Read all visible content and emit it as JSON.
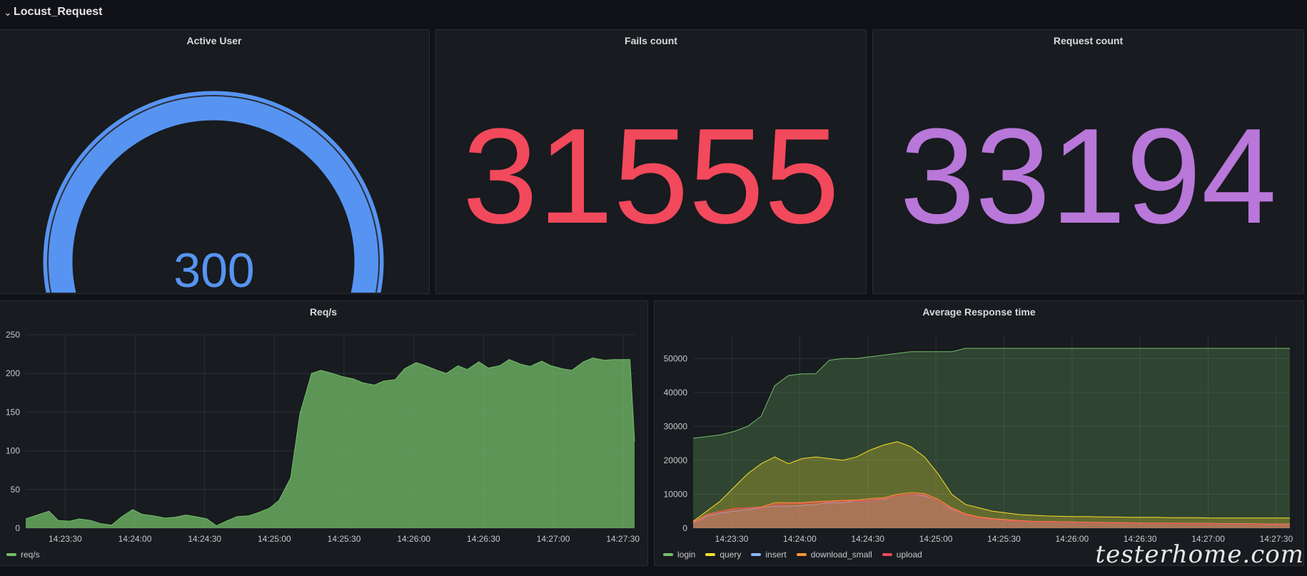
{
  "row": {
    "title": "Locust_Request",
    "chevron_icon": "chevron-down-icon"
  },
  "panels": {
    "active_user": {
      "title": "Active User",
      "value": "300",
      "numeric_value": 300,
      "color": "#5794f2"
    },
    "fails_count": {
      "title": "Fails count",
      "value": "31555",
      "color": "#f2495c"
    },
    "request_count": {
      "title": "Request count",
      "value": "33194",
      "color": "#b877d9"
    },
    "req_s": {
      "title": "Req/s"
    },
    "avg_response": {
      "title": "Average Response time"
    }
  },
  "watermark": "testerhome.com",
  "chart_data": [
    {
      "type": "area",
      "title": "Req/s",
      "ylim": [
        0,
        250
      ],
      "y_ticks": [
        "250",
        "200",
        "150",
        "100",
        "50",
        "0"
      ],
      "x_ticks": [
        "14:23:30",
        "14:24:00",
        "14:24:30",
        "14:25:00",
        "14:25:30",
        "14:26:00",
        "14:26:30",
        "14:27:00",
        "14:27:30"
      ],
      "grid": true,
      "legend_position": "bottom-left",
      "series": [
        {
          "name": "req/s",
          "color": "#73bf69",
          "x": [
            "14:23:13",
            "14:23:18",
            "14:23:23",
            "14:23:27",
            "14:23:32",
            "14:23:36",
            "14:23:41",
            "14:23:45",
            "14:23:50",
            "14:23:54",
            "14:23:59",
            "14:24:03",
            "14:24:08",
            "14:24:13",
            "14:24:17",
            "14:24:22",
            "14:24:26",
            "14:24:31",
            "14:24:35",
            "14:24:40",
            "14:24:44",
            "14:24:49",
            "14:24:53",
            "14:24:58",
            "14:25:02",
            "14:25:07",
            "14:25:11",
            "14:25:16",
            "14:25:20",
            "14:25:25",
            "14:25:29",
            "14:25:34",
            "14:25:38",
            "14:25:43",
            "14:25:47",
            "14:25:52",
            "14:25:56",
            "14:26:01",
            "14:26:05",
            "14:26:10",
            "14:26:14",
            "14:26:19",
            "14:26:23",
            "14:26:28",
            "14:26:32",
            "14:26:37",
            "14:26:41",
            "14:26:46",
            "14:26:50",
            "14:26:55",
            "14:26:59",
            "14:27:04",
            "14:27:08",
            "14:27:13",
            "14:27:17",
            "14:27:22",
            "14:27:26",
            "14:27:31",
            "14:27:33",
            "14:27:35"
          ],
          "values": [
            12,
            17,
            22,
            10,
            9,
            12,
            10,
            6,
            4,
            14,
            24,
            18,
            16,
            13,
            14,
            17,
            15,
            12,
            3,
            10,
            15,
            16,
            20,
            26,
            36,
            65,
            148,
            200,
            204,
            200,
            196,
            193,
            188,
            185,
            190,
            192,
            206,
            214,
            210,
            204,
            200,
            210,
            205,
            215,
            207,
            210,
            218,
            212,
            209,
            216,
            210,
            206,
            204,
            215,
            220,
            217,
            218,
            218,
            218,
            112
          ]
        }
      ]
    },
    {
      "type": "area",
      "title": "Average Response time",
      "ylim": [
        0,
        57000
      ],
      "y_ticks": [
        "50000",
        "40000",
        "30000",
        "20000",
        "10000",
        "0"
      ],
      "x_ticks": [
        "14:23:30",
        "14:24:00",
        "14:24:30",
        "14:25:00",
        "14:25:30",
        "14:26:00",
        "14:26:30",
        "14:27:00",
        "14:27:30"
      ],
      "grid": true,
      "legend_position": "bottom-left",
      "x": [
        "14:23:13",
        "14:23:19",
        "14:23:25",
        "14:23:31",
        "14:23:37",
        "14:23:43",
        "14:23:49",
        "14:23:55",
        "14:24:01",
        "14:24:07",
        "14:24:13",
        "14:24:19",
        "14:24:25",
        "14:24:31",
        "14:24:37",
        "14:24:43",
        "14:24:49",
        "14:24:55",
        "14:25:01",
        "14:25:07",
        "14:25:13",
        "14:25:19",
        "14:25:25",
        "14:25:31",
        "14:25:37",
        "14:25:43",
        "14:25:49",
        "14:25:55",
        "14:26:01",
        "14:26:07",
        "14:26:13",
        "14:26:19",
        "14:26:25",
        "14:26:31",
        "14:26:37",
        "14:26:43",
        "14:26:49",
        "14:26:55",
        "14:27:01",
        "14:27:07",
        "14:27:13",
        "14:27:19",
        "14:27:25",
        "14:27:31",
        "14:27:36"
      ],
      "series": [
        {
          "name": "login",
          "color": "#73bf69",
          "values": [
            26500,
            27000,
            27500,
            28500,
            30000,
            33000,
            42000,
            45000,
            45500,
            45500,
            49500,
            50000,
            50000,
            50500,
            51000,
            51500,
            52000,
            52000,
            52000,
            52000,
            53000,
            53000,
            53000,
            53000,
            53000,
            53000,
            53000,
            53000,
            53000,
            53000,
            53000,
            53000,
            53000,
            53000,
            53000,
            53000,
            53000,
            53000,
            53000,
            53000,
            53000,
            53000,
            53000,
            53000,
            53000
          ]
        },
        {
          "name": "query",
          "color": "#fade2a",
          "values": [
            2000,
            5000,
            8000,
            12000,
            16000,
            19000,
            21000,
            19000,
            20500,
            21000,
            20500,
            20000,
            21000,
            23000,
            24500,
            25500,
            24000,
            21000,
            16000,
            10000,
            7000,
            6000,
            5000,
            4500,
            4000,
            3800,
            3600,
            3500,
            3400,
            3400,
            3300,
            3300,
            3200,
            3200,
            3200,
            3100,
            3100,
            3100,
            3000,
            3000,
            3000,
            3000,
            3000,
            3000,
            3000
          ]
        },
        {
          "name": "insert",
          "color": "#8ab8ff",
          "values": [
            1500,
            3500,
            4500,
            5000,
            5500,
            6000,
            6500,
            6500,
            6700,
            7000,
            7500,
            7500,
            8000,
            8300,
            8500,
            9500,
            10000,
            9500,
            8000,
            5500,
            4000,
            3200,
            2800,
            2500,
            2200,
            2000,
            2000,
            1900,
            1800,
            1700,
            1700,
            1600,
            1600,
            1500,
            1500,
            1500,
            1400,
            1400,
            1400,
            1300,
            1300,
            1300,
            1200,
            1200,
            1200
          ]
        },
        {
          "name": "download_small",
          "color": "#ff9830",
          "values": [
            1800,
            4000,
            5000,
            5700,
            6000,
            6200,
            7500,
            7500,
            7500,
            7800,
            8000,
            8200,
            8300,
            8700,
            9000,
            10000,
            10500,
            10200,
            8500,
            6000,
            4200,
            3300,
            2800,
            2500,
            2200,
            2000,
            2000,
            1900,
            1800,
            1700,
            1700,
            1600,
            1600,
            1500,
            1500,
            1500,
            1400,
            1400,
            1400,
            1300,
            1300,
            1300,
            1200,
            1200,
            1200
          ]
        },
        {
          "name": "upload",
          "color": "#f2495c",
          "values": [
            1600,
            3800,
            5000,
            5800,
            6000,
            6000,
            7000,
            7200,
            7300,
            7500,
            7700,
            8000,
            8000,
            8300,
            8700,
            9500,
            10000,
            9800,
            8000,
            5700,
            4000,
            3100,
            2600,
            2300,
            2100,
            1900,
            1900,
            1800,
            1700,
            1600,
            1600,
            1500,
            1500,
            1400,
            1400,
            1400,
            1300,
            1300,
            1300,
            1200,
            1200,
            1200,
            1100,
            1100,
            1100
          ]
        }
      ]
    }
  ]
}
